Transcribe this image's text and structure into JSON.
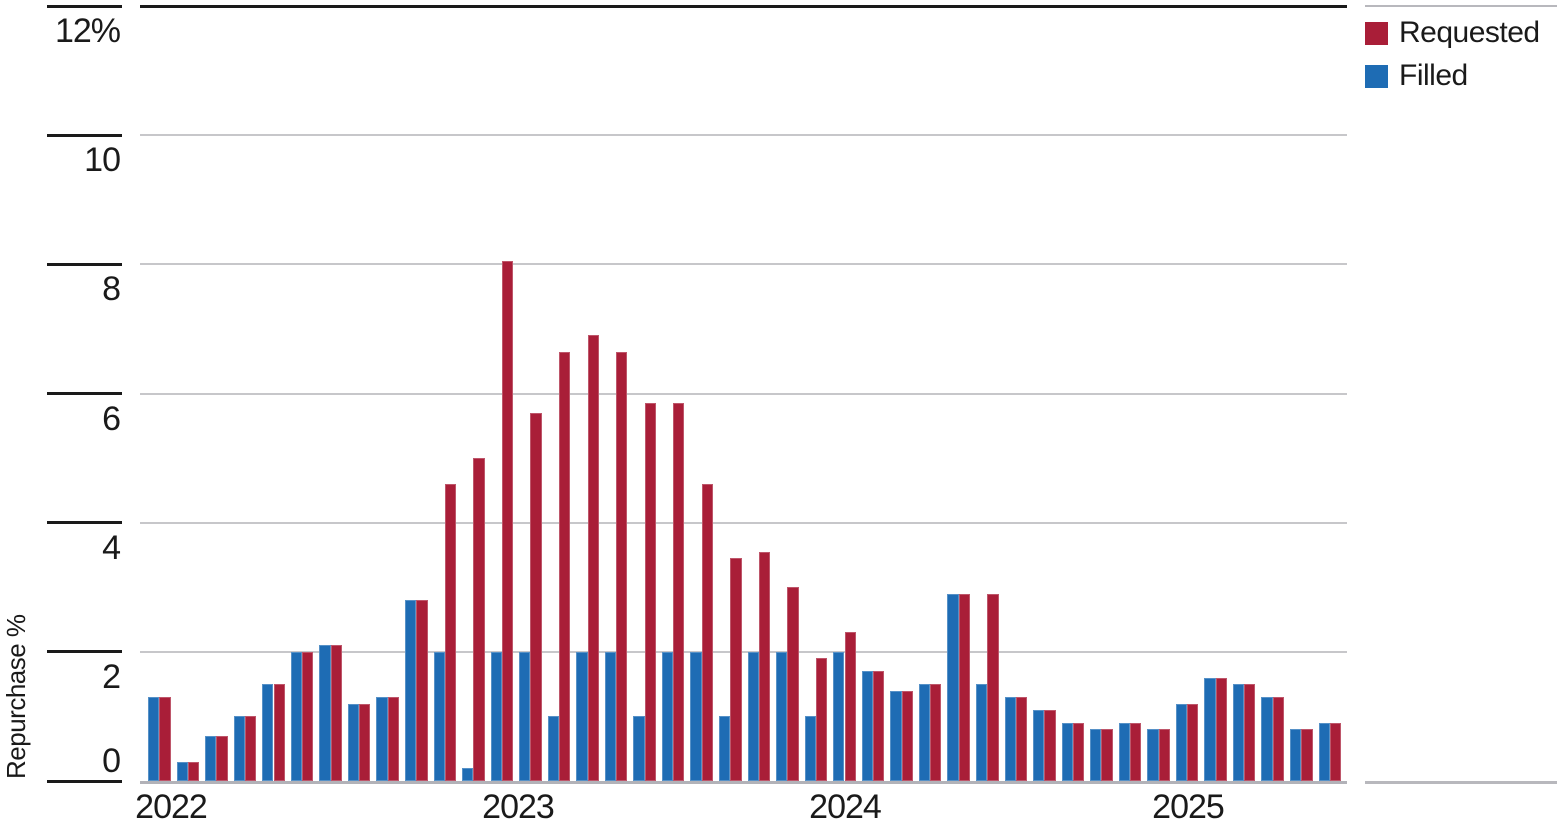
{
  "chart_data": {
    "type": "bar",
    "title": "",
    "ylabel": "Repurchase %",
    "grid": true,
    "legend_position": "top-right",
    "y_axis": {
      "min": 0,
      "max": 12,
      "ticks": [
        {
          "value": 12,
          "label": "12%"
        },
        {
          "value": 10,
          "label": "10"
        },
        {
          "value": 8,
          "label": "8"
        },
        {
          "value": 6,
          "label": "6"
        },
        {
          "value": 4,
          "label": "4"
        },
        {
          "value": 2,
          "label": "2"
        },
        {
          "value": 0,
          "label": "0"
        }
      ]
    },
    "x_months": [
      "Jan 2022",
      "Feb 2022",
      "Mar 2022",
      "Apr 2022",
      "May 2022",
      "Jun 2022",
      "Jul 2022",
      "Aug 2022",
      "Sep 2022",
      "Oct 2022",
      "Nov 2022",
      "Dec 2022",
      "Jan 2023",
      "Feb 2023",
      "Mar 2023",
      "Apr 2023",
      "May 2023",
      "Jun 2023",
      "Jul 2023",
      "Aug 2023",
      "Sep 2023",
      "Oct 2023",
      "Nov 2023",
      "Dec 2023",
      "Jan 2024",
      "Feb 2024",
      "Mar 2024",
      "Apr 2024",
      "May 2024",
      "Jun 2024",
      "Jul 2024",
      "Aug 2024",
      "Sep 2024",
      "Oct 2024",
      "Nov 2024",
      "Dec 2024",
      "Jan 2025",
      "Feb 2025",
      "Mar 2025",
      "Apr 2025",
      "May 2025",
      "Jun 2025"
    ],
    "x_year_labels": [
      {
        "label": "2022",
        "month_index": 0
      },
      {
        "label": "2023",
        "month_index": 12
      },
      {
        "label": "2024",
        "month_index": 24
      },
      {
        "label": "2025",
        "month_index": 36
      }
    ],
    "series": [
      {
        "name": "Requested",
        "color": "#A91E38",
        "values": [
          1.3,
          0.3,
          0.7,
          1.0,
          1.5,
          2.0,
          2.1,
          1.2,
          1.3,
          2.8,
          4.6,
          5.0,
          8.05,
          5.7,
          6.65,
          6.9,
          6.65,
          5.85,
          5.85,
          4.6,
          3.45,
          3.55,
          3.0,
          1.9,
          2.3,
          1.7,
          1.4,
          1.5,
          2.9,
          2.9,
          1.3,
          1.1,
          0.9,
          0.8,
          0.9,
          0.8,
          1.2,
          1.6,
          1.5,
          1.3,
          0.8,
          0.9
        ]
      },
      {
        "name": "Filled",
        "color": "#1E6CB4",
        "values": [
          1.3,
          0.3,
          0.7,
          1.0,
          1.5,
          2.0,
          2.1,
          1.2,
          1.3,
          2.8,
          2.0,
          0.2,
          2.0,
          2.0,
          1.0,
          2.0,
          2.0,
          1.0,
          2.0,
          2.0,
          1.0,
          2.0,
          2.0,
          1.0,
          2.0,
          1.7,
          1.4,
          1.5,
          2.9,
          1.5,
          1.3,
          1.1,
          0.9,
          0.8,
          0.9,
          0.8,
          1.2,
          1.6,
          1.5,
          1.3,
          0.8,
          0.9
        ]
      }
    ]
  }
}
